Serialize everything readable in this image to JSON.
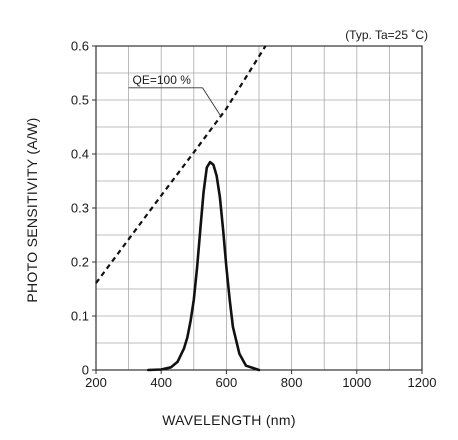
{
  "chart_data": {
    "type": "line",
    "title": "",
    "note": "(Typ. Ta=25 ˚C)",
    "xlabel": "WAVELENGTH (nm)",
    "ylabel": "PHOTO SENSITIVITY (A/W)",
    "xlim": [
      200,
      1200
    ],
    "ylim": [
      0,
      0.6
    ],
    "x_ticks": [
      200,
      400,
      600,
      800,
      1000,
      1200
    ],
    "x_tick_labels": [
      "200",
      "400",
      "600",
      "800",
      "1000",
      "1200"
    ],
    "y_ticks": [
      0,
      0.1,
      0.2,
      0.3,
      0.4,
      0.5,
      0.6
    ],
    "y_tick_labels": [
      "0",
      "0.1",
      "0.2",
      "0.3",
      "0.4",
      "0.5",
      "0.6"
    ],
    "x_minor_step": 100,
    "y_minor_step": 0.05,
    "grid": true,
    "series": [
      {
        "style": "dashed",
        "x": [
          200,
          300,
          400,
          500,
          600,
          720
        ],
        "y": [
          0.161,
          0.242,
          0.323,
          0.403,
          0.484,
          0.6
        ]
      },
      {
        "style": "solid",
        "x": [
          360,
          400,
          430,
          450,
          470,
          480,
          490,
          500,
          510,
          520,
          530,
          540,
          550,
          560,
          570,
          580,
          590,
          600,
          610,
          620,
          640,
          660,
          700
        ],
        "y": [
          0,
          0.001,
          0.005,
          0.015,
          0.04,
          0.06,
          0.09,
          0.13,
          0.19,
          0.26,
          0.33,
          0.375,
          0.385,
          0.38,
          0.36,
          0.32,
          0.26,
          0.19,
          0.13,
          0.08,
          0.03,
          0.008,
          0
        ]
      }
    ],
    "annotations": [
      {
        "text": "QE=100 %",
        "x": 312,
        "y": 0.53,
        "target_x": 583,
        "target_y": 0.47
      }
    ]
  }
}
